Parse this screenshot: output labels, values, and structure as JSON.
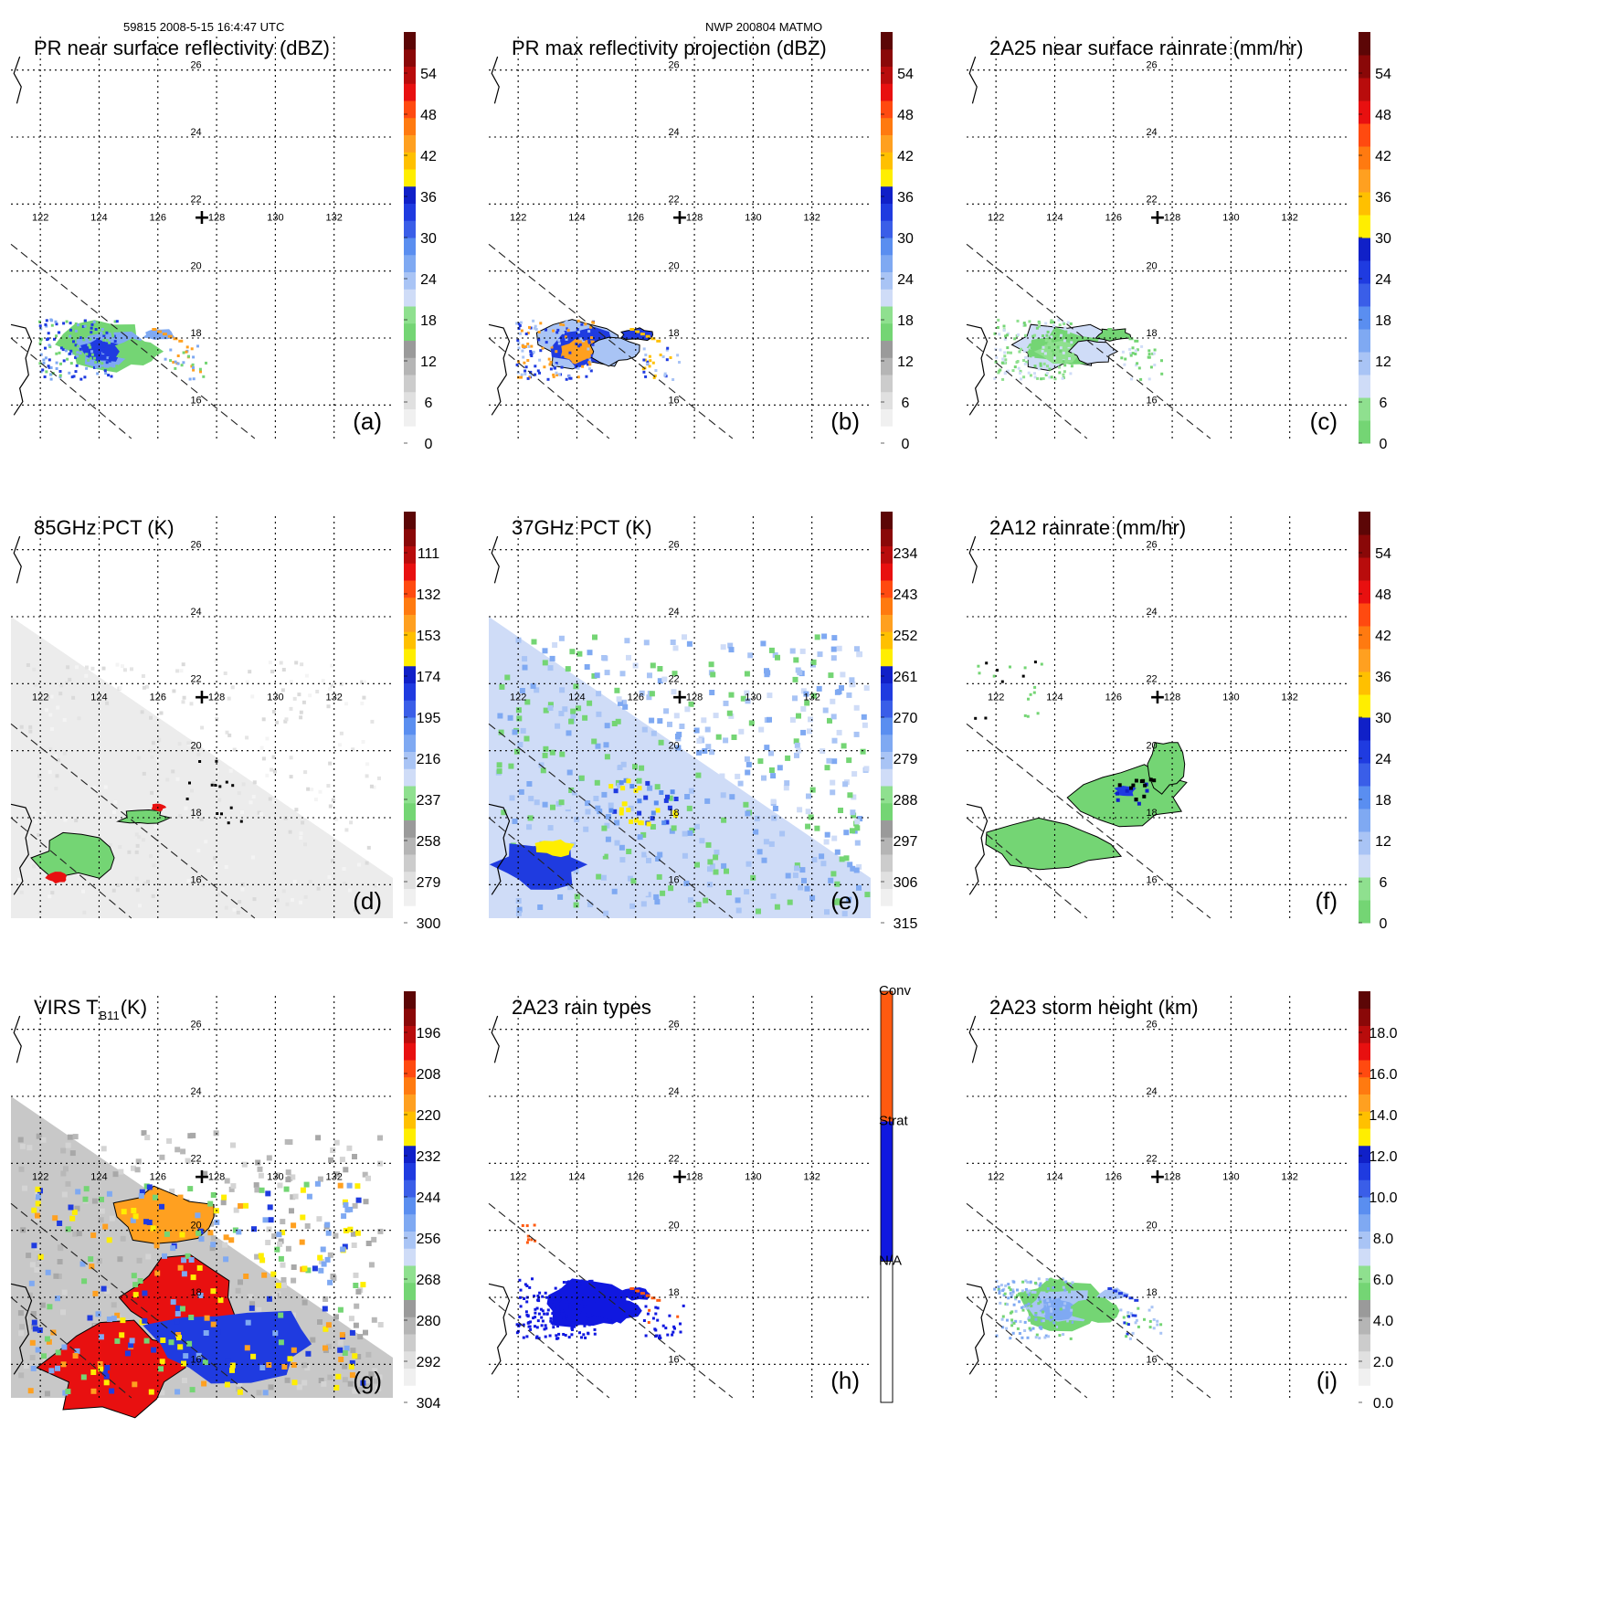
{
  "header": {
    "left": "59815 2008-5-15 16:4:47 UTC",
    "center": "NWP 200804 MATMO"
  },
  "common": {
    "lon_labels": [
      "122",
      "124",
      "126",
      "128",
      "130",
      "132"
    ],
    "lat_labels": [
      "26",
      "24",
      "22",
      "20",
      "18",
      "16"
    ],
    "marker": "+"
  },
  "colors": {
    "gray_ramp": [
      "#ffffff",
      "#f0f0f0",
      "#e0e0e0",
      "#cccccc",
      "#b5b5b5",
      "#9a9a9a"
    ],
    "green": [
      "#74d574",
      "#8fe08f"
    ],
    "lightblue": [
      "#cfdcf7",
      "#a9c4f5",
      "#7fa9f2",
      "#5a8ef0"
    ],
    "blue": [
      "#3a5ee8",
      "#1f3be0",
      "#1020c8"
    ],
    "yellow": "#ffee00",
    "orange": [
      "#ffc000",
      "#ffa020",
      "#ff7a10"
    ],
    "red": [
      "#ff4a10",
      "#e81010",
      "#b80c0c",
      "#8a0808",
      "#5c0606"
    ],
    "conv": "#ff5a10",
    "strat": "#1018e0",
    "na": "#ffffff"
  },
  "chart_data": [
    {
      "id": "a",
      "panel_label": "(a)",
      "type": "heatmap",
      "title": "PR near surface reflectivity (dBZ)",
      "title_sub": "",
      "colorbar_ticks": [
        "54",
        "48",
        "42",
        "36",
        "30",
        "24",
        "18",
        "12",
        "6",
        "0"
      ],
      "colorbar_kind": "refl",
      "x_range": [
        121,
        134
      ],
      "y_range": [
        15,
        27
      ],
      "field": "pr_surface"
    },
    {
      "id": "b",
      "panel_label": "(b)",
      "type": "heatmap",
      "title": "PR max reflectivity projection (dBZ)",
      "title_sub": "",
      "colorbar_ticks": [
        "54",
        "48",
        "42",
        "36",
        "30",
        "24",
        "18",
        "12",
        "6",
        "0"
      ],
      "colorbar_kind": "refl",
      "x_range": [
        121,
        134
      ],
      "y_range": [
        15,
        27
      ],
      "field": "pr_max"
    },
    {
      "id": "c",
      "panel_label": "(c)",
      "type": "heatmap",
      "title": "2A25 near surface rainrate (mm/hr)",
      "title_sub": "",
      "colorbar_ticks": [
        "54",
        "48",
        "42",
        "36",
        "30",
        "24",
        "18",
        "12",
        "6",
        "0"
      ],
      "colorbar_kind": "rain",
      "x_range": [
        121,
        134
      ],
      "y_range": [
        15,
        27
      ],
      "field": "rain_2a25"
    },
    {
      "id": "d",
      "panel_label": "(d)",
      "type": "heatmap",
      "title": "85GHz PCT (K)",
      "title_sub": "",
      "colorbar_ticks": [
        "111",
        "132",
        "153",
        "174",
        "195",
        "216",
        "237",
        "258",
        "279",
        "300"
      ],
      "colorbar_kind": "refl",
      "x_range": [
        121,
        134
      ],
      "y_range": [
        15,
        27
      ],
      "field": "pct85"
    },
    {
      "id": "e",
      "panel_label": "(e)",
      "type": "heatmap",
      "title": "37GHz PCT (K)",
      "title_sub": "",
      "colorbar_ticks": [
        "234",
        "243",
        "252",
        "261",
        "270",
        "279",
        "288",
        "297",
        "306",
        "315"
      ],
      "colorbar_kind": "refl",
      "x_range": [
        121,
        134
      ],
      "y_range": [
        15,
        27
      ],
      "field": "pct37"
    },
    {
      "id": "f",
      "panel_label": "(f)",
      "type": "heatmap",
      "title": "2A12 rainrate (mm/hr)",
      "title_sub": "",
      "colorbar_ticks": [
        "54",
        "48",
        "42",
        "36",
        "30",
        "24",
        "18",
        "12",
        "6",
        "0"
      ],
      "colorbar_kind": "rain",
      "x_range": [
        121,
        134
      ],
      "y_range": [
        15,
        27
      ],
      "field": "rain_2a12"
    },
    {
      "id": "g",
      "panel_label": "(g)",
      "type": "heatmap",
      "title": "VIRS T",
      "title_sub": "B11",
      "title_suffix": " (K)",
      "colorbar_ticks": [
        "196",
        "208",
        "220",
        "232",
        "244",
        "256",
        "268",
        "280",
        "292",
        "304"
      ],
      "colorbar_kind": "refl",
      "x_range": [
        121,
        134
      ],
      "y_range": [
        15,
        27
      ],
      "field": "virs"
    },
    {
      "id": "h",
      "panel_label": "(h)",
      "type": "heatmap",
      "title": "2A23 rain types",
      "title_sub": "",
      "colorbar_ticks": [
        "Conv",
        "Strat",
        "N/A"
      ],
      "colorbar_kind": "types",
      "x_range": [
        121,
        134
      ],
      "y_range": [
        15,
        27
      ],
      "field": "raintype"
    },
    {
      "id": "i",
      "panel_label": "(i)",
      "type": "heatmap",
      "title": "2A23 storm height (km)",
      "title_sub": "",
      "colorbar_ticks": [
        "18.0",
        "16.0",
        "14.0",
        "12.0",
        "10.0",
        "8.0",
        "6.0",
        "4.0",
        "2.0",
        "0.0"
      ],
      "colorbar_kind": "height",
      "x_range": [
        121,
        134
      ],
      "y_range": [
        15,
        27
      ],
      "field": "height"
    }
  ]
}
